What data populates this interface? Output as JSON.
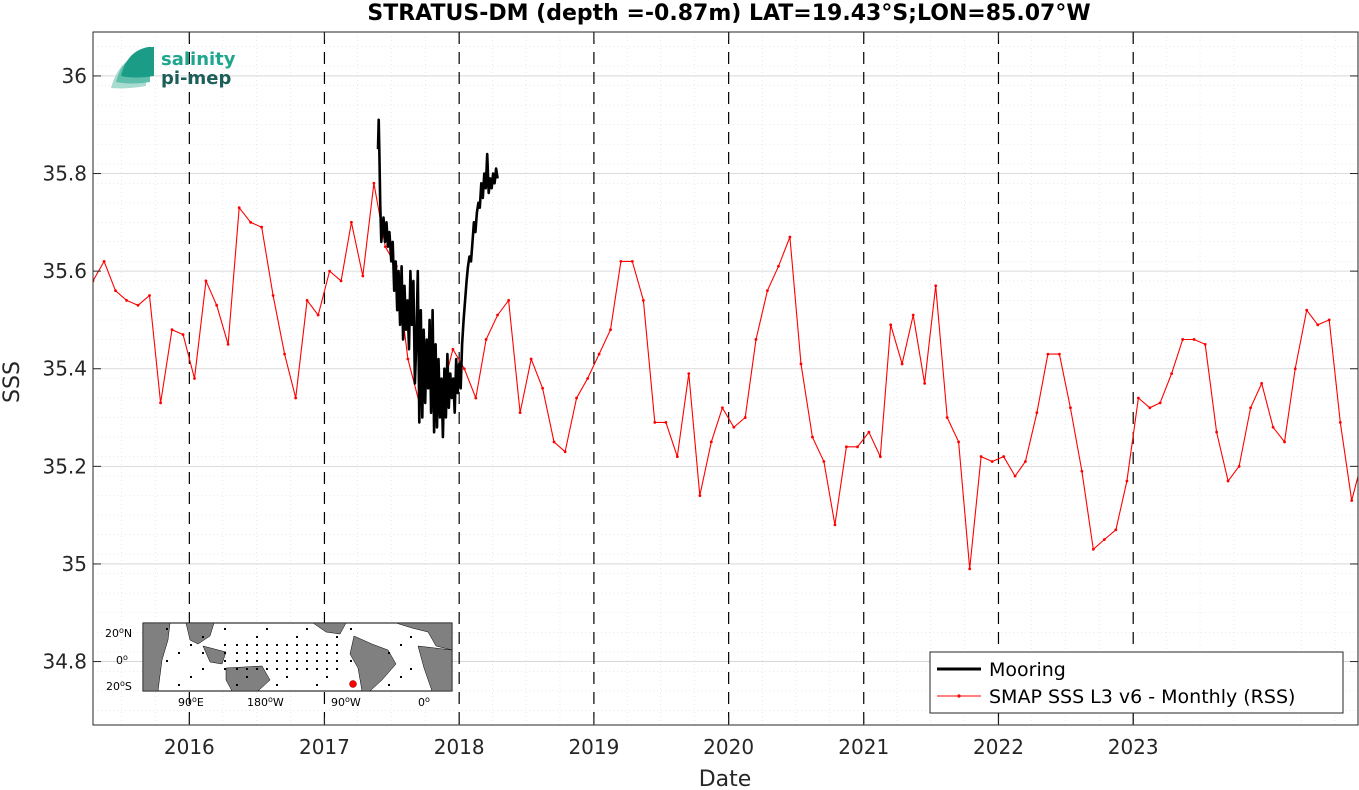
{
  "chart_data": {
    "type": "line",
    "title": "STRATUS-DM (depth =-0.87m) LAT=19.43°S;LON=85.07°W",
    "xlabel": "Date",
    "ylabel": "SSS",
    "xlim": [
      "2015-04-15",
      "2024-09-01"
    ],
    "ylim": [
      34.67,
      36.09
    ],
    "yticks": [
      34.8,
      35,
      35.2,
      35.4,
      35.6,
      35.8,
      36
    ],
    "ytick_labels": [
      "34.8",
      "35",
      "35.2",
      "35.4",
      "35.6",
      "35.8",
      "36"
    ],
    "xticks": [
      "2016-01-01",
      "2017-01-01",
      "2018-01-01",
      "2019-01-01",
      "2020-01-01",
      "2021-01-01",
      "2022-01-01",
      "2023-01-01"
    ],
    "xtick_labels": [
      "2016",
      "2017",
      "2018",
      "2019",
      "2020",
      "2021",
      "2022",
      "2023"
    ],
    "grid": true,
    "year_markers": "dashed vertical lines at each year start",
    "legend_position": "bottom-right",
    "series": [
      {
        "name": "Mooring",
        "color": "#000000",
        "x": [
          "2017-05-26",
          "2017-05-28",
          "2017-05-30",
          "2017-06-01",
          "2017-06-04",
          "2017-06-07",
          "2017-06-10",
          "2017-06-14",
          "2017-06-18",
          "2017-06-22",
          "2017-06-26",
          "2017-07-01",
          "2017-07-05",
          "2017-07-09",
          "2017-07-13",
          "2017-07-17",
          "2017-07-21",
          "2017-07-25",
          "2017-07-29",
          "2017-08-02",
          "2017-08-06",
          "2017-08-10",
          "2017-08-14",
          "2017-08-18",
          "2017-08-22",
          "2017-08-26",
          "2017-08-30",
          "2017-09-03",
          "2017-09-07",
          "2017-09-11",
          "2017-09-15",
          "2017-09-19",
          "2017-09-23",
          "2017-09-27",
          "2017-10-01",
          "2017-10-05",
          "2017-10-09",
          "2017-10-13",
          "2017-10-17",
          "2017-10-21",
          "2017-10-25",
          "2017-10-29",
          "2017-11-02",
          "2017-11-06",
          "2017-11-10",
          "2017-11-14",
          "2017-11-18",
          "2017-11-22",
          "2017-11-26",
          "2017-11-30",
          "2017-12-04",
          "2017-12-08",
          "2017-12-12",
          "2017-12-16",
          "2017-12-20",
          "2017-12-24",
          "2017-12-28",
          "2018-01-01",
          "2018-01-05",
          "2018-01-09",
          "2018-01-13",
          "2018-01-17",
          "2018-01-21",
          "2018-01-25",
          "2018-01-29",
          "2018-02-02",
          "2018-02-06",
          "2018-02-10",
          "2018-02-14",
          "2018-02-18",
          "2018-02-22",
          "2018-02-26",
          "2018-03-02",
          "2018-03-06",
          "2018-03-10",
          "2018-03-14",
          "2018-03-18",
          "2018-03-22",
          "2018-03-26",
          "2018-03-30",
          "2018-04-03",
          "2018-04-07",
          "2018-04-11",
          "2018-04-15"
        ],
        "y": [
          35.85,
          35.91,
          35.84,
          35.74,
          35.66,
          35.69,
          35.71,
          35.66,
          35.7,
          35.65,
          35.68,
          35.62,
          35.66,
          35.56,
          35.62,
          35.52,
          35.6,
          35.49,
          35.61,
          35.46,
          35.57,
          35.48,
          35.54,
          35.44,
          35.6,
          35.49,
          35.58,
          35.37,
          35.46,
          35.6,
          35.29,
          35.52,
          35.3,
          35.48,
          35.33,
          35.46,
          35.36,
          35.5,
          35.31,
          35.52,
          35.27,
          35.45,
          35.28,
          35.42,
          35.3,
          35.38,
          35.26,
          35.4,
          35.3,
          35.43,
          35.32,
          35.39,
          35.34,
          35.38,
          35.31,
          35.42,
          35.35,
          35.41,
          35.36,
          35.45,
          35.5,
          35.54,
          35.58,
          35.61,
          35.63,
          35.62,
          35.66,
          35.7,
          35.68,
          35.72,
          35.74,
          35.73,
          35.78,
          35.75,
          35.8,
          35.77,
          35.84,
          35.76,
          35.79,
          35.77,
          35.8,
          35.78,
          35.81,
          35.79
        ]
      },
      {
        "name": "SMAP SSS L3 v6 - Monthly (RSS)",
        "color": "#ff0000",
        "x": [
          "2015-04-15",
          "2015-05-15",
          "2015-06-15",
          "2015-07-15",
          "2015-08-15",
          "2015-09-15",
          "2015-10-15",
          "2015-11-15",
          "2015-12-15",
          "2016-01-15",
          "2016-02-15",
          "2016-03-15",
          "2016-04-15",
          "2016-05-15",
          "2016-06-15",
          "2016-07-15",
          "2016-08-15",
          "2016-09-15",
          "2016-10-15",
          "2016-11-15",
          "2016-12-15",
          "2017-01-15",
          "2017-02-15",
          "2017-03-15",
          "2017-04-15",
          "2017-05-15",
          "2017-06-15",
          "2017-07-15",
          "2017-08-15",
          "2017-09-15",
          "2017-10-15",
          "2017-11-15",
          "2017-12-15",
          "2018-01-15",
          "2018-02-15",
          "2018-03-15",
          "2018-04-15",
          "2018-05-15",
          "2018-06-15",
          "2018-07-15",
          "2018-08-15",
          "2018-09-15",
          "2018-10-15",
          "2018-11-15",
          "2018-12-15",
          "2019-01-15",
          "2019-02-15",
          "2019-03-15",
          "2019-04-15",
          "2019-05-15",
          "2019-06-15",
          "2019-07-15",
          "2019-08-15",
          "2019-09-15",
          "2019-10-15",
          "2019-11-15",
          "2019-12-15",
          "2020-01-15",
          "2020-02-15",
          "2020-03-15",
          "2020-04-15",
          "2020-05-15",
          "2020-06-15",
          "2020-07-15",
          "2020-08-15",
          "2020-09-15",
          "2020-10-15",
          "2020-11-15",
          "2020-12-15",
          "2021-01-15",
          "2021-02-15",
          "2021-03-15",
          "2021-04-15",
          "2021-05-15",
          "2021-06-15",
          "2021-07-15",
          "2021-08-15",
          "2021-09-15",
          "2021-10-15",
          "2021-11-15",
          "2021-12-15",
          "2022-01-15",
          "2022-02-15",
          "2022-03-15",
          "2022-04-15",
          "2022-05-15",
          "2022-06-15",
          "2022-07-15",
          "2022-08-15",
          "2022-09-15",
          "2022-10-15",
          "2022-11-15",
          "2022-12-15",
          "2023-01-15",
          "2023-02-15",
          "2023-03-15",
          "2023-04-15",
          "2023-05-15",
          "2023-06-15",
          "2023-07-15",
          "2023-08-15",
          "2023-09-15",
          "2023-10-15",
          "2023-11-15",
          "2023-12-15",
          "2024-01-15",
          "2024-02-15",
          "2024-03-15",
          "2024-04-15",
          "2024-05-15",
          "2024-06-15",
          "2024-07-15",
          "2024-08-15",
          "2024-09-15"
        ],
        "y": [
          35.58,
          35.62,
          35.56,
          35.54,
          35.53,
          35.55,
          35.33,
          35.48,
          35.47,
          35.38,
          35.58,
          35.53,
          35.45,
          35.73,
          35.7,
          35.69,
          35.55,
          35.43,
          35.34,
          35.54,
          35.51,
          35.6,
          35.58,
          35.7,
          35.59,
          35.78,
          35.65,
          35.61,
          35.42,
          35.33,
          35.38,
          35.35,
          35.44,
          35.4,
          35.34,
          35.46,
          35.51,
          35.54,
          35.31,
          35.42,
          35.36,
          35.25,
          35.23,
          35.34,
          35.38,
          35.43,
          35.48,
          35.62,
          35.62,
          35.54,
          35.29,
          35.29,
          35.22,
          35.39,
          35.14,
          35.25,
          35.32,
          35.28,
          35.3,
          35.46,
          35.56,
          35.61,
          35.67,
          35.41,
          35.26,
          35.21,
          35.08,
          35.24,
          35.24,
          35.27,
          35.22,
          35.49,
          35.41,
          35.51,
          35.37,
          35.57,
          35.3,
          35.25,
          34.99,
          35.22,
          35.21,
          35.22,
          35.18,
          35.21,
          35.31,
          35.43,
          35.43,
          35.32,
          35.19,
          35.03,
          35.05,
          35.07,
          35.17,
          35.34,
          35.32,
          35.33,
          35.39,
          35.46,
          35.46,
          35.45,
          35.27,
          35.17,
          35.2,
          35.32,
          35.37,
          35.28,
          35.25,
          35.4,
          35.52,
          35.49,
          35.5,
          35.29,
          35.13,
          35.22
        ]
      }
    ]
  },
  "logo": {
    "line1": "salinity",
    "line2": "pi-mep"
  },
  "inset_map": {
    "lat_labels": [
      "20",
      "0",
      "20"
    ],
    "lat_suffixes": [
      "N",
      "",
      "S"
    ],
    "lon_labels": [
      "90",
      "180",
      "90",
      "0"
    ],
    "lon_suffixes": [
      "E",
      "W",
      "W",
      ""
    ],
    "marker_color": "#ff0000"
  }
}
